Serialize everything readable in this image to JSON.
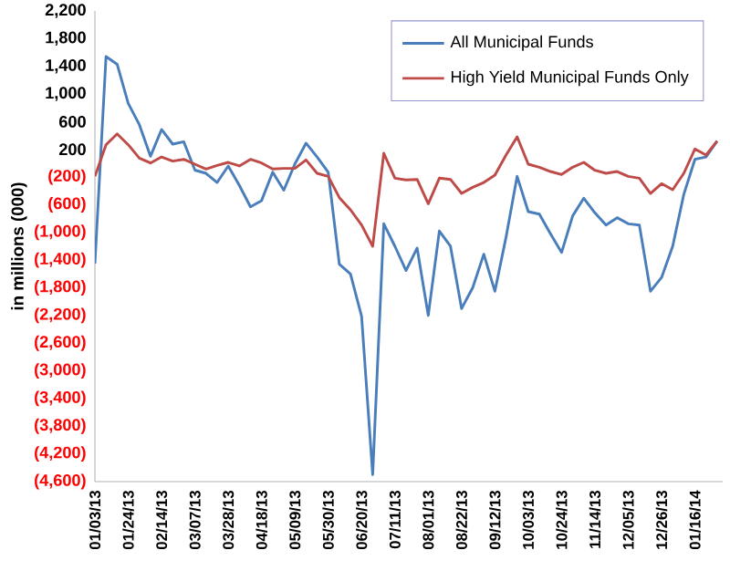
{
  "chart_data": {
    "type": "line",
    "ylabel": "in millions (000)",
    "categories": [
      "01/03/13",
      null,
      null,
      "01/24/13",
      null,
      null,
      "02/14/13",
      null,
      null,
      "03/07/13",
      null,
      null,
      "03/28/13",
      null,
      null,
      "04/18/13",
      null,
      null,
      "05/09/13",
      null,
      null,
      "05/30/13",
      null,
      null,
      "06/20/13",
      null,
      null,
      "07/11/13",
      null,
      null,
      "08/01/13",
      null,
      null,
      "08/22/13",
      null,
      null,
      "09/12/13",
      null,
      null,
      "10/03/13",
      null,
      null,
      "10/24/13",
      null,
      null,
      "11/14/13",
      null,
      null,
      "12/05/13",
      null,
      null,
      "12/26/13",
      null,
      null,
      "01/16/14",
      null,
      null
    ],
    "series": [
      {
        "name": "All Municipal Funds",
        "color": "#4a7ebb",
        "values": [
          -1450,
          1540,
          1430,
          865,
          557,
          100,
          487,
          276,
          310,
          -100,
          -146,
          -278,
          -40,
          -320,
          -630,
          -540,
          -130,
          -390,
          -10,
          290,
          90,
          -130,
          -1460,
          -1600,
          -2210,
          -4500,
          -875,
          -1200,
          -1550,
          -1226,
          -2200,
          -980,
          -1200,
          -2100,
          -1800,
          -1314,
          -1850,
          -1070,
          -190,
          -700,
          -735,
          -1020,
          -1290,
          -760,
          -506,
          -717,
          -893,
          -787,
          -875,
          -893,
          -1850,
          -1650,
          -1200,
          -450,
          56,
          90,
          320
        ]
      },
      {
        "name": "High Yield Municipal Funds Only",
        "color": "#be4b48",
        "values": [
          -190,
          267,
          425,
          267,
          74,
          3,
          91,
          30,
          56,
          -14,
          -84,
          -32,
          12,
          -40,
          56,
          3,
          -84,
          -75,
          -75,
          47,
          -146,
          -190,
          -497,
          -673,
          -893,
          -1200,
          144,
          -216,
          -242,
          -234,
          -585,
          -216,
          -234,
          -436,
          -348,
          -278,
          -172,
          118,
          381,
          -14,
          -58,
          -120,
          -163,
          -58,
          12,
          -102,
          -146,
          -120,
          -190,
          -216,
          -436,
          -295,
          -383,
          -146,
          206,
          118,
          320
        ]
      }
    ],
    "ylim": [
      -4600,
      2200
    ],
    "yticks": [
      {
        "value": -4600,
        "label": "(4,600)"
      },
      {
        "value": -4200,
        "label": "(4,200)"
      },
      {
        "value": -3800,
        "label": "(3,800)"
      },
      {
        "value": -3400,
        "label": "(3,400)"
      },
      {
        "value": -3000,
        "label": "(3,000)"
      },
      {
        "value": -2600,
        "label": "(2,600)"
      },
      {
        "value": -2200,
        "label": "(2,200)"
      },
      {
        "value": -1800,
        "label": "(1,800)"
      },
      {
        "value": -1400,
        "label": "(1,400)"
      },
      {
        "value": -1000,
        "label": "(1,000)"
      },
      {
        "value": -600,
        "label": "(600)"
      },
      {
        "value": -200,
        "label": "(200)"
      },
      {
        "value": 200,
        "label": "200"
      },
      {
        "value": 600,
        "label": "600"
      },
      {
        "value": 1000,
        "label": "1,000"
      },
      {
        "value": 1400,
        "label": "1,400"
      },
      {
        "value": 1800,
        "label": "1,800"
      },
      {
        "value": 2200,
        "label": "2,200"
      }
    ],
    "legend": "top right"
  }
}
